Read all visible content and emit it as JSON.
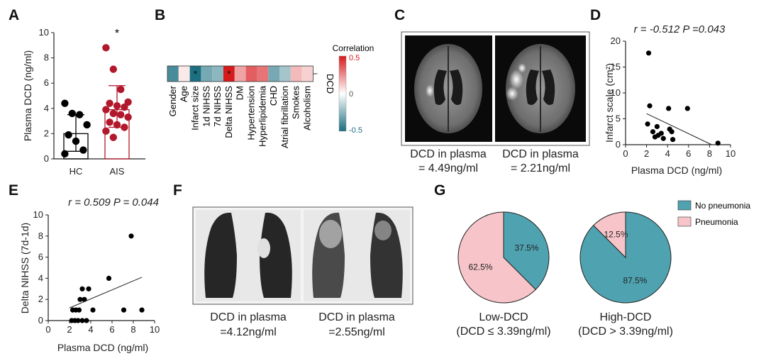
{
  "panels": {
    "A": {
      "label": "A",
      "chart_data": {
        "type": "scatter",
        "categories": [
          "HC",
          "AIS"
        ],
        "ylabel": "Plasma DCD (ng/ml)",
        "xlabel": "",
        "ylim": [
          0,
          10
        ],
        "yticks": [
          0,
          2,
          4,
          6,
          8,
          10
        ],
        "significance": "*",
        "series": [
          {
            "category": "HC",
            "color": "#000000",
            "mean": 2.0,
            "sd_low": 0.6,
            "sd_high": 3.5,
            "values": [
              4.4,
              3.6,
              3.5,
              2.7,
              1.9,
              1.4,
              0.7,
              0.4
            ]
          },
          {
            "category": "AIS",
            "color": "#b2182b",
            "mean": 3.9,
            "sd_low": 2.5,
            "sd_high": 5.8,
            "values": [
              8.8,
              7.1,
              5.5,
              4.5,
              4.4,
              4.2,
              4.1,
              3.9,
              3.6,
              3.5,
              3.3,
              2.9,
              2.7,
              2.5,
              2.2,
              1.7
            ]
          }
        ]
      }
    },
    "B": {
      "label": "B",
      "chart_data": {
        "type": "heatmap",
        "row_label": "DCD",
        "colorbar_title": "Correlation",
        "colorbar_ticks": [
          "0.5",
          "0",
          "-0.5"
        ],
        "range": [
          -0.5,
          0.5
        ],
        "variables": [
          "Gender",
          "Age",
          "Infarct size",
          "1d NIHSS",
          "7d NIHSS",
          "Delta NIHSS",
          "DM",
          "Hypertension",
          "Hyperlipidemia",
          "CHD",
          "Atrial fibrillation",
          "Smokes",
          "Alcoholism"
        ],
        "values": [
          -0.4,
          0.05,
          -0.51,
          -0.3,
          -0.25,
          0.51,
          0.2,
          0.35,
          0.3,
          -0.3,
          -0.2,
          0.15,
          0.1
        ],
        "significance": [
          "",
          "",
          "*",
          "",
          "",
          "*",
          "",
          "",
          "",
          "",
          "",
          "",
          ""
        ]
      }
    },
    "C": {
      "label": "C",
      "captions": [
        {
          "line1": "DCD in plasma",
          "line2": "= 4.49ng/ml"
        },
        {
          "line1": "DCD in plasma",
          "line2": "= 2.21ng/ml"
        }
      ]
    },
    "D": {
      "label": "D",
      "stat": "r = -0.512 P =0.043",
      "chart_data": {
        "type": "scatter",
        "xlabel": "Plasma DCD (ng/ml)",
        "ylabel": "Infarct scale (cm²)",
        "xlim": [
          0,
          10
        ],
        "ylim": [
          0,
          20
        ],
        "xticks": [
          0,
          2,
          4,
          6,
          8,
          10
        ],
        "yticks": [
          0,
          5,
          10,
          15,
          20
        ],
        "points": [
          [
            2.2,
            17.7
          ],
          [
            2.3,
            7.5
          ],
          [
            2.1,
            4
          ],
          [
            2.6,
            2.5
          ],
          [
            2.8,
            1.5
          ],
          [
            3.0,
            3.5
          ],
          [
            3.1,
            1.8
          ],
          [
            3.4,
            2.2
          ],
          [
            3.6,
            1.2
          ],
          [
            4.1,
            7
          ],
          [
            4.2,
            3
          ],
          [
            4.4,
            2.5
          ],
          [
            4.5,
            1.0
          ],
          [
            5.9,
            7
          ],
          [
            8.8,
            0.3
          ]
        ],
        "fit_line": [
          [
            2.0,
            6.0
          ],
          [
            8.2,
            0.0
          ]
        ]
      }
    },
    "E": {
      "label": "E",
      "stat": "r = 0.509 P = 0.044",
      "chart_data": {
        "type": "scatter",
        "xlabel": "Plasma DCD (ng/ml)",
        "ylabel": "Delta NIHSS (7d-1d)",
        "xlim": [
          0,
          10
        ],
        "ylim": [
          0,
          10
        ],
        "xticks": [
          0,
          2,
          4,
          6,
          8,
          10
        ],
        "yticks": [
          0,
          2,
          4,
          6,
          8,
          10
        ],
        "points": [
          [
            2.2,
            0
          ],
          [
            2.5,
            0
          ],
          [
            2.8,
            0
          ],
          [
            3.2,
            0
          ],
          [
            3.6,
            0
          ],
          [
            2.3,
            1
          ],
          [
            2.6,
            1
          ],
          [
            2.9,
            1
          ],
          [
            3.4,
            2
          ],
          [
            3.0,
            2
          ],
          [
            3.2,
            3
          ],
          [
            3.8,
            3
          ],
          [
            4.2,
            1
          ],
          [
            5.7,
            4
          ],
          [
            7.1,
            1
          ],
          [
            7.8,
            8
          ],
          [
            8.8,
            1
          ]
        ],
        "fit_line": [
          [
            2.0,
            1.2
          ],
          [
            8.8,
            4.1
          ]
        ]
      }
    },
    "F": {
      "label": "F",
      "captions": [
        {
          "line1": "DCD in plasma",
          "line2": "=4.12ng/ml"
        },
        {
          "line1": "DCD in plasma",
          "line2": "=2.55ng/ml"
        }
      ]
    },
    "G": {
      "label": "G",
      "chart_data": [
        {
          "type": "pie",
          "title_line1": "Low-DCD",
          "title_line2": "(DCD ≤ 3.39ng/ml)",
          "slices": [
            {
              "name": "No pneumonia",
              "value": 37.5,
              "label": "37.5%",
              "color": "#4fa3b0"
            },
            {
              "name": "Pneumonia",
              "value": 62.5,
              "label": "62.5%",
              "color": "#f7c5c9"
            }
          ]
        },
        {
          "type": "pie",
          "title_line1": "High-DCD",
          "title_line2": "(DCD > 3.39ng/ml)",
          "slices": [
            {
              "name": "No pneumonia",
              "value": 87.5,
              "label": "87.5%",
              "color": "#4fa3b0"
            },
            {
              "name": "Pneumonia",
              "value": 12.5,
              "label": "12.5%",
              "color": "#f7c5c9"
            }
          ]
        }
      ],
      "legend": [
        {
          "name": "No pneumonia",
          "color": "#4fa3b0"
        },
        {
          "name": "Pneumonia",
          "color": "#f7c5c9"
        }
      ]
    }
  }
}
